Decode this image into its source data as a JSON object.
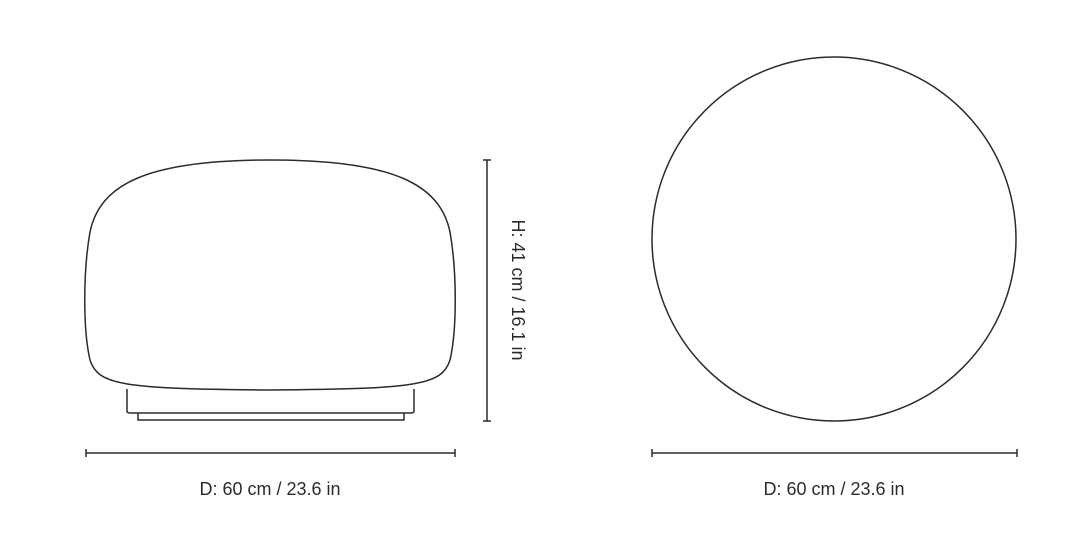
{
  "side_view": {
    "width_label": "D: 60 cm / 23.6 in",
    "height_label": "H: 41 cm / 16.1 in"
  },
  "top_view": {
    "diameter_label": "D: 60 cm / 23.6 in"
  },
  "colors": {
    "line": "#2b2b2b",
    "background": "#ffffff"
  }
}
